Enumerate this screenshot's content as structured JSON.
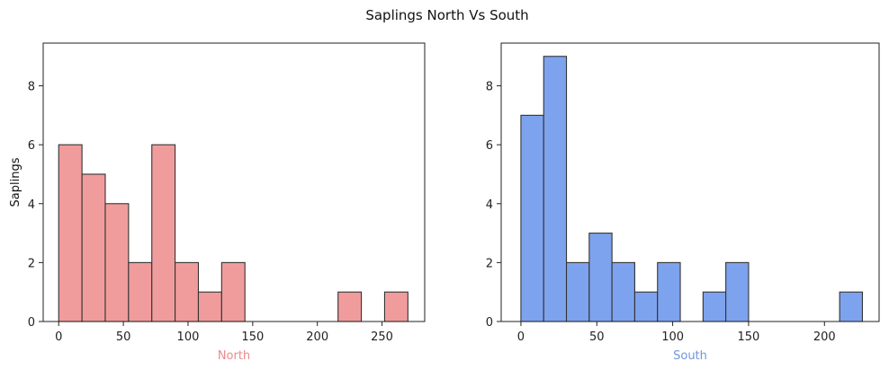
{
  "figure": {
    "title": "Saplings North Vs South"
  },
  "chart_data": [
    {
      "type": "bar",
      "subtype": "histogram",
      "xlabel": "North",
      "ylabel": "Saplings",
      "xlabel_color": "#e98a8a",
      "bar_color": "#f19c9c",
      "edge_color": "#333333",
      "xlim": [
        -12,
        283
      ],
      "ylim": [
        0,
        9.45
      ],
      "xticks": [
        0,
        50,
        100,
        150,
        200,
        250
      ],
      "yticks": [
        0,
        2,
        4,
        6,
        8
      ],
      "bin_edges": [
        0,
        18,
        36,
        54,
        72,
        90,
        108,
        126,
        144,
        162,
        180,
        198,
        216,
        234,
        252,
        270
      ],
      "values": [
        6,
        5,
        4,
        2,
        6,
        2,
        1,
        2,
        0,
        0,
        0,
        0,
        1,
        0,
        1
      ],
      "grid": false
    },
    {
      "type": "bar",
      "subtype": "histogram",
      "xlabel": "South",
      "ylabel": "",
      "xlabel_color": "#6f96df",
      "bar_color": "#7ea3ee",
      "edge_color": "#333333",
      "xlim": [
        -13,
        236
      ],
      "ylim": [
        0,
        9.45
      ],
      "xticks": [
        0,
        50,
        100,
        150,
        200
      ],
      "yticks": [
        0,
        2,
        4,
        6,
        8
      ],
      "bin_edges": [
        0,
        15,
        30,
        45,
        60,
        75,
        90,
        105,
        120,
        135,
        150,
        165,
        180,
        195,
        210,
        225
      ],
      "values": [
        7,
        9,
        2,
        3,
        2,
        1,
        2,
        0,
        1,
        2,
        0,
        0,
        0,
        0,
        1
      ],
      "grid": false
    }
  ]
}
